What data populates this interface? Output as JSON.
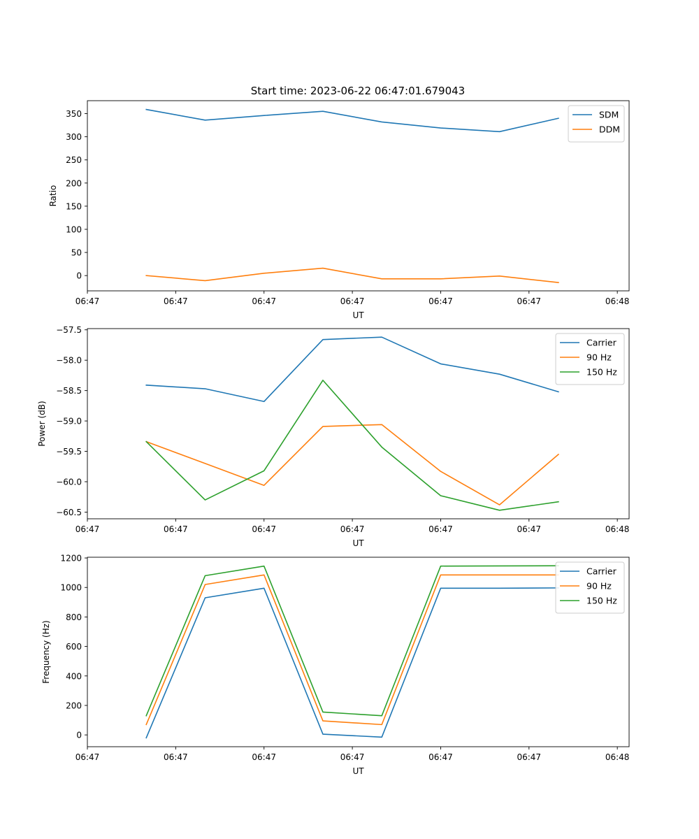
{
  "figure": {
    "title": "Start time: 2023-06-22 06:47:01.679043"
  },
  "chart_data": [
    {
      "type": "line",
      "xlabel": "UT",
      "ylabel": "Ratio",
      "x_tick_labels": [
        "06:47",
        "06:47",
        "06:47",
        "06:47",
        "06:47",
        "06:47",
        "06:48"
      ],
      "x": [
        1,
        2,
        3,
        4,
        5,
        6,
        7,
        8
      ],
      "xlim": [
        0,
        9.2
      ],
      "x_ticks": [
        0,
        1.5,
        3,
        4.5,
        6,
        7.5,
        9
      ],
      "ylim": [
        -33,
        378
      ],
      "y_ticks": [
        0,
        50,
        100,
        150,
        200,
        250,
        300,
        350
      ],
      "legend_position": "upper right",
      "series": [
        {
          "name": "SDM",
          "color": "#1f77b4",
          "values": [
            359,
            336,
            346,
            355,
            332,
            319,
            311,
            340
          ]
        },
        {
          "name": "DDM",
          "color": "#ff7f0e",
          "values": [
            0,
            -11,
            5,
            16,
            -7,
            -7,
            -1,
            -15
          ]
        }
      ]
    },
    {
      "type": "line",
      "xlabel": "UT",
      "ylabel": "Power (dB)",
      "x_tick_labels": [
        "06:47",
        "06:47",
        "06:47",
        "06:47",
        "06:47",
        "06:47",
        "06:48"
      ],
      "x": [
        1,
        2,
        3,
        4,
        5,
        6,
        7,
        8
      ],
      "xlim": [
        0,
        9.2
      ],
      "x_ticks": [
        0,
        1.5,
        3,
        4.5,
        6,
        7.5,
        9
      ],
      "ylim": [
        -60.61,
        -57.48
      ],
      "y_ticks": [
        -60.5,
        -60.0,
        -59.5,
        -59.0,
        -58.5,
        -58.0,
        -57.5
      ],
      "y_tick_labels": [
        "−60.5",
        "−60.0",
        "−59.5",
        "−59.0",
        "−58.5",
        "−58.0",
        "−57.5"
      ],
      "legend_position": "upper right",
      "series": [
        {
          "name": "Carrier",
          "color": "#1f77b4",
          "values": [
            -58.41,
            -58.47,
            -58.68,
            -57.66,
            -57.62,
            -58.06,
            -58.23,
            -58.52
          ]
        },
        {
          "name": "90 Hz",
          "color": "#ff7f0e",
          "values": [
            -59.34,
            -59.7,
            -60.06,
            -59.09,
            -59.06,
            -59.83,
            -60.38,
            -59.55
          ]
        },
        {
          "name": "150 Hz",
          "color": "#2ca02c",
          "values": [
            -59.34,
            -60.3,
            -59.82,
            -58.33,
            -59.43,
            -60.23,
            -60.47,
            -60.33
          ]
        }
      ]
    },
    {
      "type": "line",
      "xlabel": "UT",
      "ylabel": "Frequency (Hz)",
      "x_tick_labels": [
        "06:47",
        "06:47",
        "06:47",
        "06:47",
        "06:47",
        "06:47",
        "06:48"
      ],
      "x": [
        1,
        2,
        3,
        4,
        5,
        6,
        7,
        8
      ],
      "xlim": [
        0,
        9.2
      ],
      "x_ticks": [
        0,
        1.5,
        3,
        4.5,
        6,
        7.5,
        9
      ],
      "ylim": [
        -80,
        1205
      ],
      "y_ticks": [
        0,
        200,
        400,
        600,
        800,
        1000,
        1200
      ],
      "legend_position": "upper right",
      "series": [
        {
          "name": "Carrier",
          "color": "#1f77b4",
          "values": [
            -20,
            930,
            995,
            5,
            -15,
            995,
            995,
            997
          ]
        },
        {
          "name": "90 Hz",
          "color": "#ff7f0e",
          "values": [
            70,
            1020,
            1085,
            95,
            70,
            1085,
            1085,
            1085
          ]
        },
        {
          "name": "150 Hz",
          "color": "#2ca02c",
          "values": [
            130,
            1080,
            1145,
            155,
            130,
            1145,
            1146,
            1147
          ]
        }
      ]
    }
  ]
}
